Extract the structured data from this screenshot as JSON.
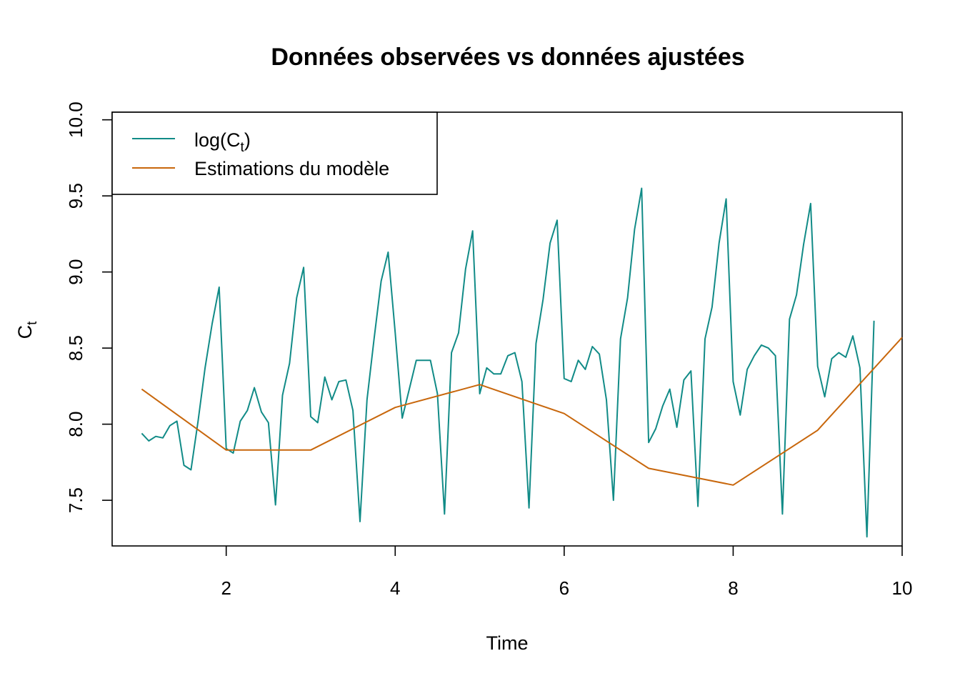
{
  "chart_data": {
    "type": "line",
    "title": "Données observées vs données ajustées",
    "xlabel": "Time",
    "ylabel": {
      "base": "C",
      "sub": "t"
    },
    "xlim": [
      0.65,
      10
    ],
    "ylim": [
      7.2,
      10.05
    ],
    "xticks": [
      2,
      4,
      6,
      8,
      10
    ],
    "xtick_labels": [
      "2",
      "4",
      "6",
      "8",
      "10"
    ],
    "yticks": [
      7.5,
      8.0,
      8.5,
      9.0,
      9.5,
      10.0
    ],
    "ytick_labels": [
      "7.5",
      "8.0",
      "8.5",
      "9.0",
      "9.5",
      "10.0"
    ],
    "grid": false,
    "legend_position": "top-left",
    "legend": [
      {
        "label_pre": "log",
        "label_base": "C",
        "label_sub": "t",
        "color": "#118B87"
      },
      {
        "label": "Estimations du modèle",
        "color": "#C8670C"
      }
    ],
    "series": [
      {
        "color": "#118B87",
        "x_start": 1,
        "x_step": 0.08333333,
        "values": [
          7.94,
          7.89,
          7.92,
          7.91,
          7.99,
          8.02,
          7.73,
          7.7,
          8.02,
          8.37,
          8.66,
          8.9,
          7.84,
          7.81,
          8.02,
          8.09,
          8.24,
          8.08,
          8.01,
          7.47,
          8.19,
          8.4,
          8.83,
          9.03,
          8.05,
          8.01,
          8.31,
          8.16,
          8.28,
          8.29,
          8.09,
          7.36,
          8.16,
          8.56,
          8.94,
          9.13,
          8.6,
          8.04,
          8.23,
          8.42,
          8.42,
          8.42,
          8.2,
          7.41,
          8.47,
          8.6,
          9.02,
          9.27,
          8.2,
          8.37,
          8.33,
          8.33,
          8.45,
          8.47,
          8.28,
          7.45,
          8.53,
          8.82,
          9.19,
          9.34,
          8.3,
          8.28,
          8.42,
          8.36,
          8.51,
          8.46,
          8.16,
          7.5,
          8.56,
          8.83,
          9.28,
          9.55,
          7.88,
          7.97,
          8.12,
          8.23,
          7.98,
          8.29,
          8.35,
          7.46,
          8.56,
          8.77,
          9.19,
          9.48,
          8.28,
          8.06,
          8.36,
          8.45,
          8.52,
          8.5,
          8.45,
          7.41,
          8.69,
          8.85,
          9.18,
          9.45,
          8.38,
          8.18,
          8.43,
          8.47,
          8.44,
          8.58,
          8.37,
          7.26,
          8.68
        ]
      },
      {
        "color": "#C8670C",
        "x": [
          1,
          2,
          3,
          4,
          5,
          6,
          7,
          8,
          9,
          10
        ],
        "values": [
          8.23,
          7.83,
          7.83,
          8.11,
          8.26,
          8.07,
          7.71,
          7.6,
          7.96,
          8.57
        ]
      }
    ]
  }
}
